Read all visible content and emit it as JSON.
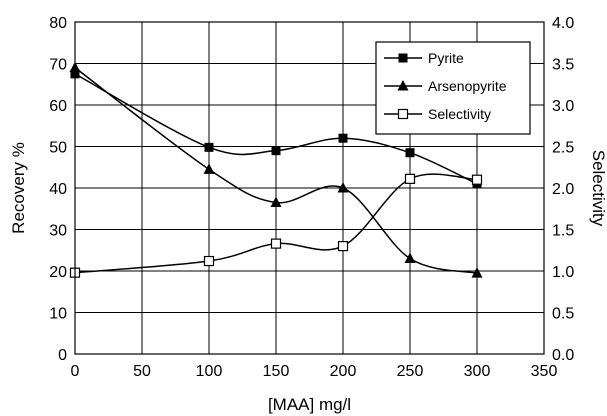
{
  "chart_data": {
    "type": "line",
    "title": "",
    "xlabel": "[MAA] mg/l",
    "ylabel": "Recovery %",
    "y2label": "Selectivity",
    "xlim": [
      0,
      350
    ],
    "ylim": [
      0,
      80
    ],
    "y2lim": [
      0,
      4
    ],
    "xticks": [
      0,
      50,
      100,
      150,
      200,
      250,
      300,
      350
    ],
    "yticks": [
      0,
      10,
      20,
      30,
      40,
      50,
      60,
      70,
      80
    ],
    "y2ticks": [
      "0.0",
      "0.5",
      "1.0",
      "1.5",
      "2.0",
      "2.5",
      "3.0",
      "3.5",
      "4.0"
    ],
    "grid": true,
    "legend": "top-right",
    "series": [
      {
        "name": "Pyrite",
        "axis": "left",
        "marker": "filled-square",
        "x": [
          0,
          100,
          150,
          200,
          250,
          300
        ],
        "values": [
          67.5,
          49.8,
          49,
          52,
          48.5,
          41
        ]
      },
      {
        "name": "Arsenopyrite",
        "axis": "left",
        "marker": "filled-triangle",
        "x": [
          0,
          100,
          150,
          200,
          250,
          300
        ],
        "values": [
          69,
          44.5,
          36.5,
          40,
          23,
          19.5
        ]
      },
      {
        "name": "Selectivity",
        "axis": "right",
        "marker": "open-square",
        "x": [
          0,
          100,
          150,
          200,
          250,
          300
        ],
        "values": [
          0.98,
          1.12,
          1.33,
          1.3,
          2.11,
          2.1
        ]
      }
    ]
  }
}
